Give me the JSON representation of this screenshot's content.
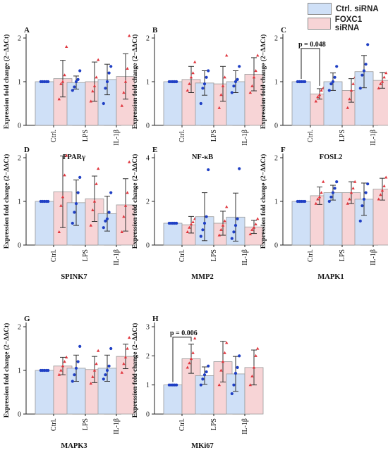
{
  "legend": {
    "ctrl_label": "Ctrl. siRNA",
    "foxc1_label": "FOXC1 siRNA",
    "ctrl_color": "#cfe0f7",
    "foxc1_color": "#f7d4d6",
    "ctrl_dot_color": "#1f3fc4",
    "foxc1_dot_color": "#e0343c"
  },
  "chart_data": [
    {
      "type": "bar",
      "letter": "A",
      "title": "PPARγ",
      "ylabel": "Expression fold change (2−ΔΔCt)",
      "categories": [
        "Ctrl.",
        "LPS",
        "IL-1β"
      ],
      "ylim": [
        0,
        2
      ],
      "yticks": [
        0,
        1,
        2
      ],
      "series": [
        {
          "name": "Ctrl. siRNA",
          "values": [
            1.0,
            0.98,
            1.05
          ],
          "err": [
            0.0,
            0.15,
            0.35
          ],
          "points": [
            [
              1.0,
              1.0,
              1.0,
              1.0,
              1.0
            ],
            [
              0.8,
              0.88,
              1.0,
              1.05,
              1.25
            ],
            [
              0.5,
              0.85,
              1.0,
              1.2,
              1.35
            ]
          ]
        },
        {
          "name": "FOXC1 siRNA",
          "values": [
            1.07,
            1.0,
            1.12
          ],
          "err": [
            0.42,
            0.45,
            0.52
          ],
          "points": [
            [
              0.6,
              0.95,
              1.0,
              1.15,
              1.8
            ],
            [
              0.55,
              0.78,
              0.9,
              1.1,
              1.5
            ],
            [
              0.45,
              0.75,
              1.0,
              1.3,
              2.05
            ]
          ]
        }
      ]
    },
    {
      "type": "bar",
      "letter": "B",
      "title": "NF-κB",
      "ylabel": "Expression fold change (2−ΔΔCt)",
      "categories": [
        "Ctrl.",
        "LPS",
        "IL-1β"
      ],
      "ylim": [
        0,
        2
      ],
      "yticks": [
        0,
        1,
        2
      ],
      "series": [
        {
          "name": "Ctrl. siRNA",
          "values": [
            1.0,
            0.97,
            1.0
          ],
          "err": [
            0.0,
            0.28,
            0.25
          ],
          "points": [
            [
              1.0,
              1.0,
              1.0,
              1.0,
              1.0
            ],
            [
              0.5,
              0.85,
              0.95,
              1.1,
              1.25
            ],
            [
              0.75,
              0.9,
              1.0,
              1.05,
              1.35
            ]
          ]
        },
        {
          "name": "FOXC1 siRNA",
          "values": [
            1.05,
            0.95,
            1.17
          ],
          "err": [
            0.3,
            0.4,
            0.38
          ],
          "points": [
            [
              0.8,
              0.95,
              1.1,
              1.2,
              1.45
            ],
            [
              0.4,
              0.7,
              0.9,
              1.1,
              1.6
            ],
            [
              0.75,
              0.9,
              1.1,
              1.25,
              1.6
            ]
          ]
        }
      ]
    },
    {
      "type": "bar",
      "letter": "C",
      "title": "FOSL2",
      "ylabel": "Expression fold change (2−ΔΔCt)",
      "categories": [
        "Ctrl.",
        "LPS",
        "IL-1β"
      ],
      "ylim": [
        0,
        2
      ],
      "yticks": [
        0,
        1,
        2
      ],
      "annotation": "p = 0.048",
      "series": [
        {
          "name": "Ctrl. siRNA",
          "values": [
            1.0,
            1.0,
            1.23
          ],
          "err": [
            0.0,
            0.2,
            0.37
          ],
          "points": [
            [
              1.0,
              1.0,
              1.0,
              1.0,
              1.0
            ],
            [
              0.8,
              0.95,
              1.0,
              1.1,
              1.35
            ],
            [
              0.85,
              1.15,
              1.25,
              1.4,
              1.85
            ]
          ]
        },
        {
          "name": "FOXC1 siRNA",
          "values": [
            0.72,
            0.8,
            1.03
          ],
          "err": [
            0.12,
            0.27,
            0.18
          ],
          "points": [
            [
              0.55,
              0.65,
              0.7,
              0.8,
              0.85
            ],
            [
              0.4,
              0.6,
              0.8,
              0.95,
              1.1
            ],
            [
              0.85,
              0.95,
              1.0,
              1.1,
              1.2
            ]
          ]
        }
      ]
    },
    {
      "type": "bar",
      "letter": "D",
      "title": "SPINK7",
      "ylabel": "Expression fold change (2−ΔΔCt)",
      "categories": [
        "Ctrl.",
        "LPS",
        "IL-1β"
      ],
      "ylim": [
        0,
        2
      ],
      "yticks": [
        0,
        1,
        2
      ],
      "series": [
        {
          "name": "Ctrl. siRNA",
          "values": [
            1.0,
            0.97,
            0.72
          ],
          "err": [
            0.0,
            0.52,
            0.4
          ],
          "points": [
            [
              1.0,
              1.0,
              1.0,
              1.0,
              1.0
            ],
            [
              0.5,
              0.75,
              0.95,
              1.2,
              1.55
            ],
            [
              0.4,
              0.55,
              0.6,
              0.75,
              1.2
            ]
          ]
        },
        {
          "name": "FOXC1 siRNA",
          "values": [
            1.22,
            1.06,
            0.92
          ],
          "err": [
            0.82,
            0.52,
            0.6
          ],
          "points": [
            [
              0.3,
              0.9,
              1.1,
              1.6,
              2.05
            ],
            [
              0.45,
              0.8,
              1.0,
              1.4,
              1.75
            ],
            [
              0.3,
              0.65,
              0.9,
              1.2,
              1.9
            ]
          ]
        }
      ]
    },
    {
      "type": "bar",
      "letter": "E",
      "title": "MMP2",
      "ylabel": "Expression fold change (2−ΔΔCt)",
      "categories": [
        "Ctrl.",
        "LPS",
        "IL-1β"
      ],
      "ylim": [
        0,
        4
      ],
      "yticks": [
        0,
        2,
        4
      ],
      "series": [
        {
          "name": "Ctrl. siRNA",
          "values": [
            1.0,
            1.3,
            1.28
          ],
          "err": [
            0.0,
            1.1,
            1.1
          ],
          "points": [
            [
              1.0,
              1.0,
              1.0,
              1.0,
              1.0
            ],
            [
              0.4,
              0.7,
              1.0,
              1.3,
              3.45
            ],
            [
              0.3,
              0.6,
              0.9,
              1.2,
              3.5
            ]
          ]
        },
        {
          "name": "FOXC1 siRNA",
          "values": [
            0.93,
            1.0,
            0.83
          ],
          "err": [
            0.38,
            0.55,
            0.3
          ],
          "points": [
            [
              0.6,
              0.8,
              0.95,
              1.05,
              1.2
            ],
            [
              0.45,
              0.7,
              0.9,
              1.1,
              1.75
            ],
            [
              0.5,
              0.7,
              0.8,
              0.95,
              1.2
            ]
          ]
        }
      ]
    },
    {
      "type": "bar",
      "letter": "F",
      "title": "MAPK1",
      "ylabel": "Expression fold change (2−ΔΔCt)",
      "categories": [
        "Ctrl.",
        "LPS",
        "IL-1β"
      ],
      "ylim": [
        0,
        2
      ],
      "yticks": [
        0,
        1,
        2
      ],
      "series": [
        {
          "name": "Ctrl. siRNA",
          "values": [
            1.0,
            1.2,
            1.05
          ],
          "err": [
            0.0,
            0.17,
            0.37
          ],
          "points": [
            [
              1.0,
              1.0,
              1.0,
              1.0,
              1.0
            ],
            [
              1.0,
              1.1,
              1.2,
              1.3,
              1.45
            ],
            [
              0.55,
              0.9,
              1.05,
              1.2,
              1.4
            ]
          ]
        },
        {
          "name": "FOXC1 siRNA",
          "values": [
            1.13,
            1.2,
            1.28
          ],
          "err": [
            0.2,
            0.25,
            0.25
          ],
          "points": [
            [
              0.95,
              1.05,
              1.1,
              1.2,
              1.45
            ],
            [
              0.95,
              1.05,
              1.2,
              1.3,
              1.45
            ],
            [
              1.05,
              1.15,
              1.25,
              1.35,
              1.55
            ]
          ]
        }
      ]
    },
    {
      "type": "bar",
      "letter": "G",
      "title": "MAPK3",
      "ylabel": "Expression fold change (2−ΔΔCt)",
      "categories": [
        "Ctrl.",
        "LPS",
        "IL-1β"
      ],
      "ylim": [
        0,
        2
      ],
      "yticks": [
        0,
        1,
        2
      ],
      "series": [
        {
          "name": "Ctrl. siRNA",
          "values": [
            1.0,
            1.05,
            1.05
          ],
          "err": [
            0.0,
            0.3,
            0.3
          ],
          "points": [
            [
              1.0,
              1.0,
              1.0,
              1.0,
              1.0
            ],
            [
              0.75,
              0.9,
              1.05,
              1.2,
              1.55
            ],
            [
              0.8,
              0.9,
              1.0,
              1.1,
              1.5
            ]
          ]
        },
        {
          "name": "FOXC1 siRNA",
          "values": [
            1.1,
            1.02,
            1.32
          ],
          "err": [
            0.2,
            0.3,
            0.28
          ],
          "points": [
            [
              0.9,
              1.0,
              1.1,
              1.2,
              1.3
            ],
            [
              0.7,
              0.85,
              1.0,
              1.15,
              1.45
            ],
            [
              0.95,
              1.15,
              1.3,
              1.5,
              1.75
            ]
          ]
        }
      ]
    },
    {
      "type": "bar",
      "letter": "H",
      "title": "MKi67",
      "ylabel": "Expression fold change (2−ΔΔCt)",
      "categories": [
        "Ctrl.",
        "LPS",
        "IL-1β"
      ],
      "ylim": [
        0,
        3
      ],
      "yticks": [
        0,
        1,
        2,
        3
      ],
      "annotation": "p = 0.006",
      "series": [
        {
          "name": "Ctrl. siRNA",
          "values": [
            1.0,
            1.32,
            1.38
          ],
          "err": [
            0.0,
            0.3,
            0.6
          ],
          "points": [
            [
              1.0,
              1.0,
              1.0,
              1.0,
              1.0
            ],
            [
              1.0,
              1.2,
              1.35,
              1.45,
              1.65
            ],
            [
              0.7,
              1.0,
              1.4,
              1.6,
              2.0
            ]
          ]
        },
        {
          "name": "FOXC1 siRNA",
          "values": [
            1.9,
            1.8,
            1.6
          ],
          "err": [
            0.5,
            0.7,
            0.6
          ],
          "points": [
            [
              1.6,
              1.75,
              1.9,
              2.1,
              2.6
            ],
            [
              1.0,
              1.5,
              1.8,
              2.1,
              2.45
            ],
            [
              1.0,
              1.3,
              1.6,
              2.0,
              2.25
            ]
          ]
        }
      ]
    }
  ]
}
